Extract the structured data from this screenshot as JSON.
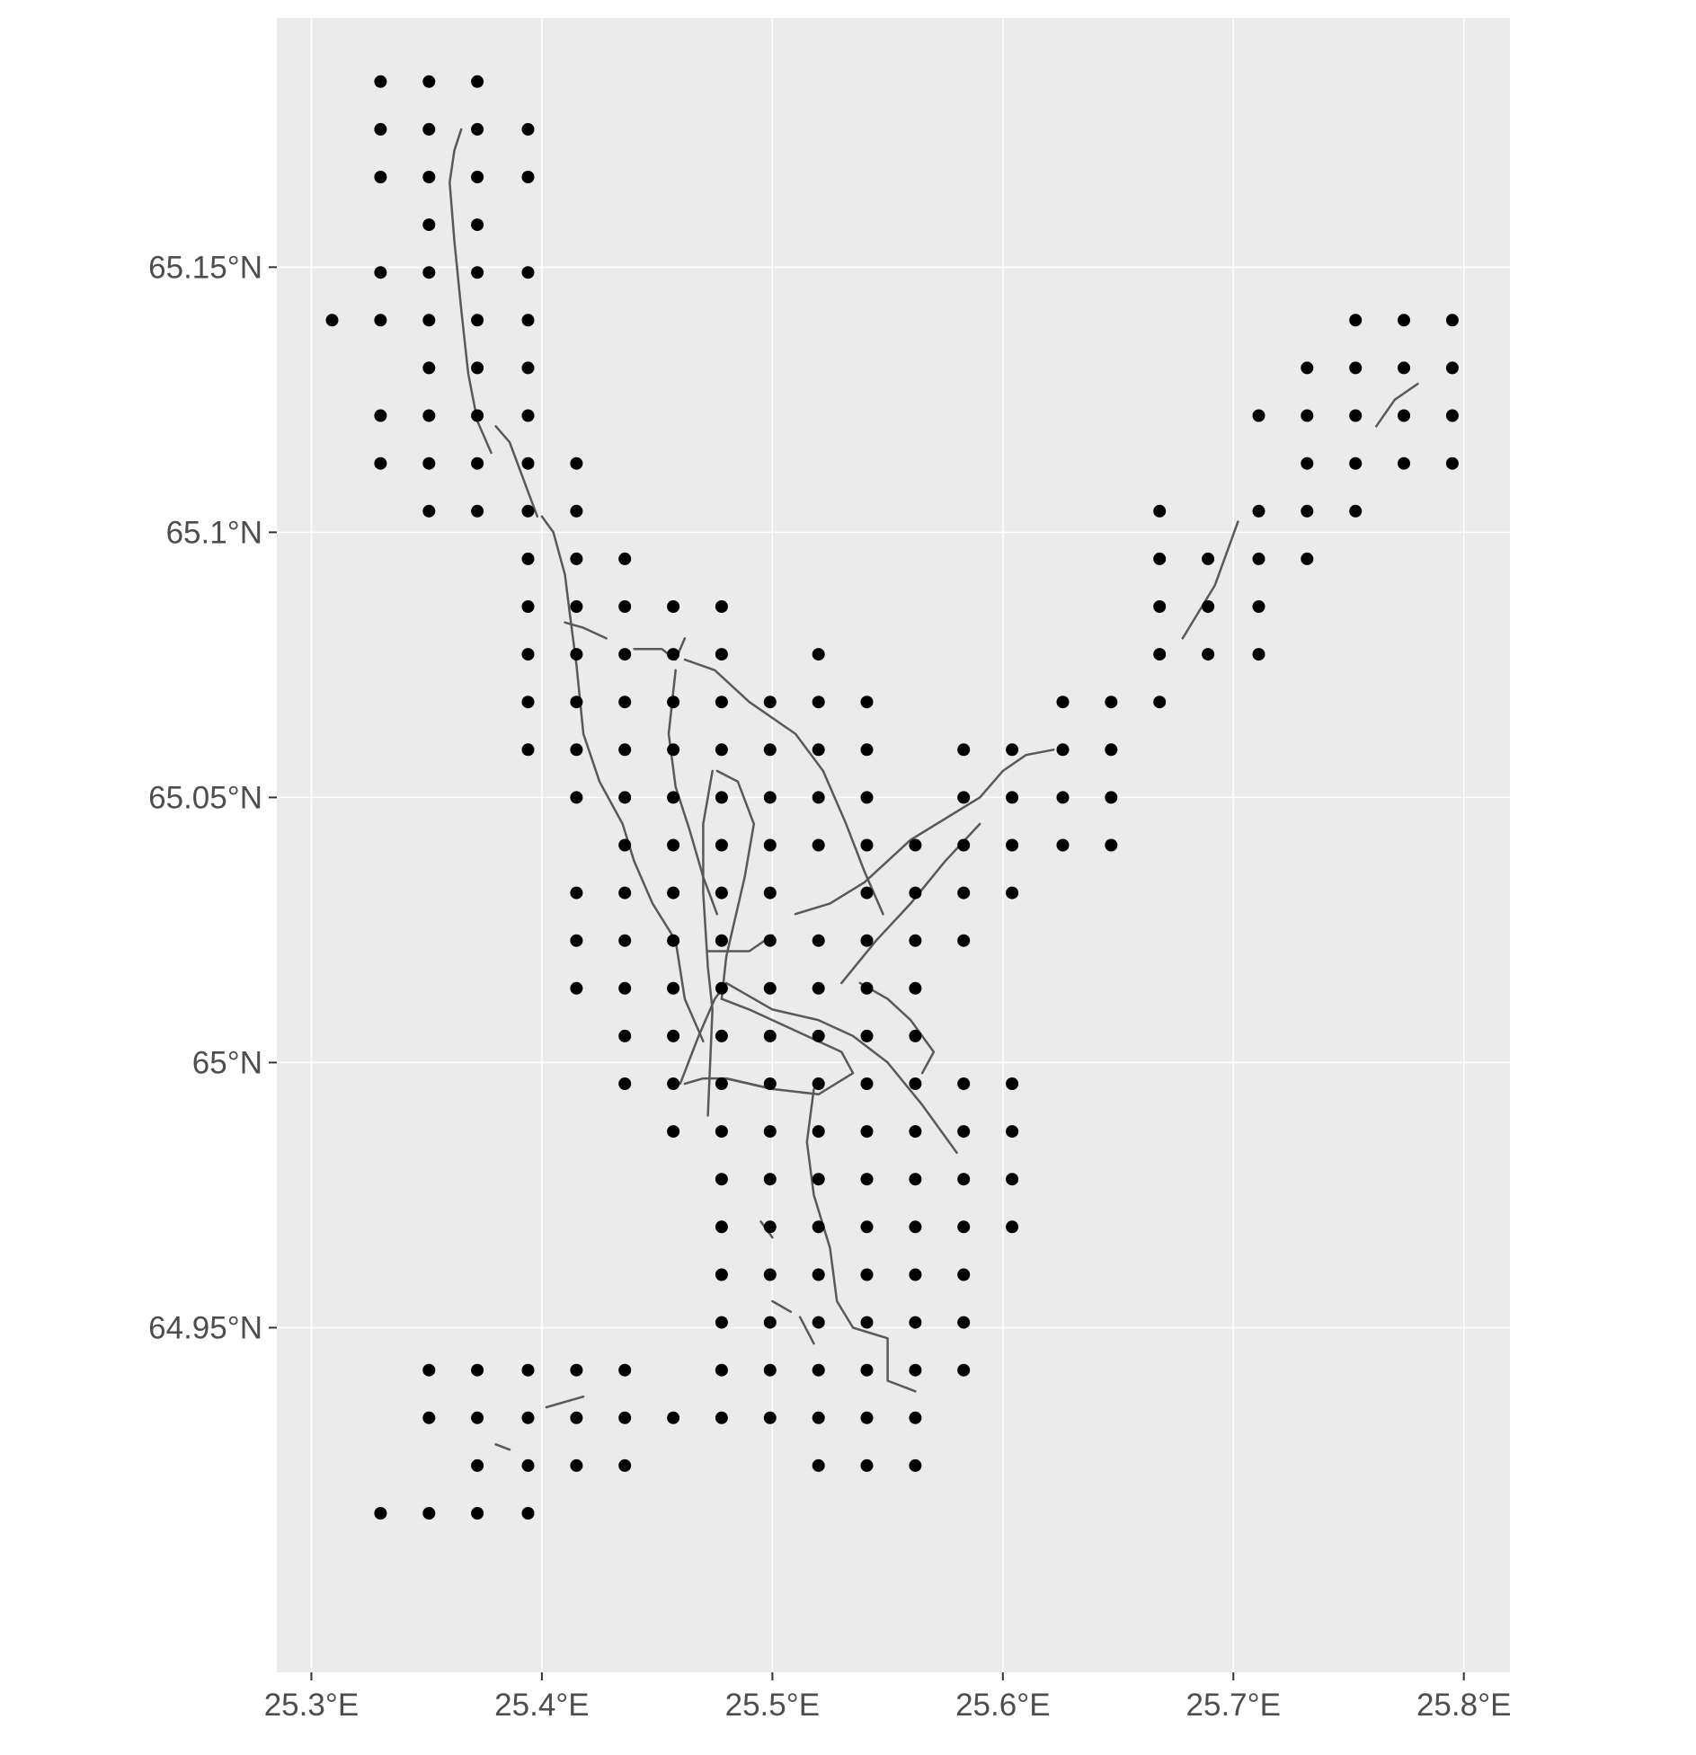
{
  "chart_data": {
    "type": "scatter",
    "title": "",
    "xlabel": "",
    "ylabel": "",
    "background_color": "#ebebeb",
    "grid_color": "#ffffff",
    "point_color": "#000000",
    "line_color": "#595959",
    "x_ticks": [
      "25.3°E",
      "25.4°E",
      "25.5°E",
      "25.6°E",
      "25.7°E",
      "25.8°E"
    ],
    "y_ticks": [
      "65.15°N",
      "65.1°N",
      "65.05°N",
      "65°N",
      "64.95°N"
    ],
    "x_tick_values": [
      25.3,
      25.4,
      25.5,
      25.6,
      25.7,
      25.8
    ],
    "y_tick_values": [
      65.15,
      65.1,
      65.05,
      65.0,
      64.95
    ],
    "xlim": [
      25.285,
      25.82
    ],
    "ylim": [
      64.885,
      65.197
    ],
    "grid": true,
    "legend": "none",
    "points_by_row": [
      {
        "lat": 65.185,
        "lons": [
          25.33,
          25.351,
          25.372
        ]
      },
      {
        "lat": 65.176,
        "lons": [
          25.33,
          25.351,
          25.372,
          25.394
        ]
      },
      {
        "lat": 65.167,
        "lons": [
          25.33,
          25.351,
          25.372,
          25.394
        ]
      },
      {
        "lat": 65.158,
        "lons": [
          25.351,
          25.372
        ]
      },
      {
        "lat": 65.149,
        "lons": [
          25.33,
          25.351,
          25.372,
          25.394
        ]
      },
      {
        "lat": 65.14,
        "lons": [
          25.309,
          25.33,
          25.351,
          25.372,
          25.394,
          25.753,
          25.774,
          25.795
        ]
      },
      {
        "lat": 65.131,
        "lons": [
          25.351,
          25.372,
          25.394,
          25.732,
          25.753,
          25.774,
          25.795
        ]
      },
      {
        "lat": 65.122,
        "lons": [
          25.33,
          25.351,
          25.372,
          25.394,
          25.711,
          25.732,
          25.753,
          25.774,
          25.795
        ]
      },
      {
        "lat": 65.113,
        "lons": [
          25.33,
          25.351,
          25.372,
          25.394,
          25.415,
          25.732,
          25.753,
          25.774,
          25.795
        ]
      },
      {
        "lat": 65.104,
        "lons": [
          25.351,
          25.372,
          25.394,
          25.415,
          25.668,
          25.711,
          25.732,
          25.753
        ]
      },
      {
        "lat": 65.095,
        "lons": [
          25.394,
          25.415,
          25.436,
          25.668,
          25.689,
          25.711,
          25.732
        ]
      },
      {
        "lat": 65.086,
        "lons": [
          25.394,
          25.415,
          25.436,
          25.457,
          25.478,
          25.668,
          25.689,
          25.711
        ]
      },
      {
        "lat": 65.077,
        "lons": [
          25.394,
          25.415,
          25.436,
          25.457,
          25.478,
          25.52,
          25.668,
          25.689,
          25.711
        ]
      },
      {
        "lat": 65.068,
        "lons": [
          25.394,
          25.415,
          25.436,
          25.457,
          25.478,
          25.499,
          25.52,
          25.541,
          25.626,
          25.647,
          25.668
        ]
      },
      {
        "lat": 65.059,
        "lons": [
          25.394,
          25.415,
          25.436,
          25.457,
          25.478,
          25.499,
          25.52,
          25.541,
          25.583,
          25.604,
          25.626,
          25.647
        ]
      },
      {
        "lat": 65.05,
        "lons": [
          25.415,
          25.436,
          25.457,
          25.478,
          25.499,
          25.52,
          25.541,
          25.583,
          25.604,
          25.626,
          25.647
        ]
      },
      {
        "lat": 65.041,
        "lons": [
          25.436,
          25.457,
          25.478,
          25.499,
          25.52,
          25.541,
          25.562,
          25.583,
          25.604,
          25.626,
          25.647
        ]
      },
      {
        "lat": 65.032,
        "lons": [
          25.415,
          25.436,
          25.457,
          25.478,
          25.499,
          25.541,
          25.562,
          25.583,
          25.604
        ]
      },
      {
        "lat": 65.023,
        "lons": [
          25.415,
          25.436,
          25.457,
          25.478,
          25.499,
          25.52,
          25.541,
          25.562,
          25.583
        ]
      },
      {
        "lat": 65.014,
        "lons": [
          25.415,
          25.436,
          25.457,
          25.478,
          25.499,
          25.52,
          25.541,
          25.562
        ]
      },
      {
        "lat": 65.005,
        "lons": [
          25.436,
          25.457,
          25.478,
          25.499,
          25.52,
          25.541,
          25.562
        ]
      },
      {
        "lat": 64.996,
        "lons": [
          25.436,
          25.457,
          25.478,
          25.499,
          25.52,
          25.541,
          25.562,
          25.583,
          25.604
        ]
      },
      {
        "lat": 64.987,
        "lons": [
          25.457,
          25.478,
          25.499,
          25.52,
          25.541,
          25.562,
          25.583,
          25.604
        ]
      },
      {
        "lat": 64.978,
        "lons": [
          25.478,
          25.499,
          25.52,
          25.541,
          25.562,
          25.583,
          25.604
        ]
      },
      {
        "lat": 64.969,
        "lons": [
          25.478,
          25.499,
          25.52,
          25.541,
          25.562,
          25.583,
          25.604
        ]
      },
      {
        "lat": 64.96,
        "lons": [
          25.478,
          25.499,
          25.52,
          25.541,
          25.562,
          25.583
        ]
      },
      {
        "lat": 64.951,
        "lons": [
          25.478,
          25.499,
          25.52,
          25.541,
          25.562,
          25.583
        ]
      },
      {
        "lat": 64.942,
        "lons": [
          25.351,
          25.372,
          25.394,
          25.415,
          25.436,
          25.478,
          25.499,
          25.52,
          25.541,
          25.562,
          25.583
        ]
      },
      {
        "lat": 64.933,
        "lons": [
          25.351,
          25.372,
          25.394,
          25.415,
          25.436,
          25.457,
          25.478,
          25.499,
          25.52,
          25.541,
          25.562
        ]
      },
      {
        "lat": 64.924,
        "lons": [
          25.372,
          25.394,
          25.415,
          25.436,
          25.52,
          25.541,
          25.562
        ]
      },
      {
        "lat": 64.915,
        "lons": [
          25.33,
          25.351,
          25.372,
          25.394
        ]
      }
    ],
    "lines": [
      [
        [
          25.365,
          65.176
        ],
        [
          25.362,
          65.172
        ],
        [
          25.36,
          65.166
        ],
        [
          25.362,
          65.155
        ],
        [
          25.365,
          65.142
        ],
        [
          25.368,
          65.13
        ],
        [
          25.372,
          65.121
        ],
        [
          25.378,
          65.115
        ]
      ],
      [
        [
          25.38,
          65.12
        ],
        [
          25.386,
          65.117
        ],
        [
          25.392,
          65.11
        ],
        [
          25.398,
          65.103
        ]
      ],
      [
        [
          25.4,
          65.103
        ],
        [
          25.405,
          65.1
        ],
        [
          25.41,
          65.092
        ],
        [
          25.412,
          65.085
        ],
        [
          25.415,
          65.075
        ],
        [
          25.418,
          65.062
        ],
        [
          25.425,
          65.053
        ],
        [
          25.435,
          65.045
        ],
        [
          25.44,
          65.038
        ],
        [
          25.448,
          65.03
        ],
        [
          25.458,
          65.023
        ],
        [
          25.462,
          65.012
        ],
        [
          25.47,
          65.004
        ]
      ],
      [
        [
          25.41,
          65.083
        ],
        [
          25.418,
          65.082
        ],
        [
          25.428,
          65.08
        ]
      ],
      [
        [
          25.44,
          65.078
        ],
        [
          25.452,
          65.078
        ],
        [
          25.458,
          65.076
        ],
        [
          25.462,
          65.08
        ]
      ],
      [
        [
          25.458,
          65.074
        ],
        [
          25.455,
          65.062
        ],
        [
          25.458,
          65.052
        ],
        [
          25.464,
          65.044
        ],
        [
          25.47,
          65.035
        ],
        [
          25.476,
          65.028
        ]
      ],
      [
        [
          25.462,
          65.076
        ],
        [
          25.475,
          65.074
        ],
        [
          25.49,
          65.068
        ],
        [
          25.51,
          65.062
        ],
        [
          25.522,
          65.055
        ],
        [
          25.532,
          65.045
        ],
        [
          25.54,
          65.036
        ],
        [
          25.548,
          65.028
        ]
      ],
      [
        [
          25.474,
          65.055
        ],
        [
          25.47,
          65.045
        ],
        [
          25.47,
          65.032
        ],
        [
          25.472,
          65.018
        ],
        [
          25.474,
          65.01
        ],
        [
          25.472,
          64.99
        ]
      ],
      [
        [
          25.476,
          65.055
        ],
        [
          25.485,
          65.053
        ],
        [
          25.492,
          65.045
        ],
        [
          25.488,
          65.035
        ],
        [
          25.48,
          65.02
        ],
        [
          25.478,
          65.012
        ]
      ],
      [
        [
          25.472,
          65.021
        ],
        [
          25.49,
          65.021
        ],
        [
          25.5,
          65.024
        ]
      ],
      [
        [
          25.51,
          65.028
        ],
        [
          25.525,
          65.03
        ],
        [
          25.54,
          65.034
        ],
        [
          25.56,
          65.042
        ],
        [
          25.575,
          65.046
        ],
        [
          25.59,
          65.05
        ],
        [
          25.6,
          65.055
        ],
        [
          25.61,
          65.058
        ],
        [
          25.622,
          65.059
        ]
      ],
      [
        [
          25.53,
          65.015
        ],
        [
          25.545,
          65.023
        ],
        [
          25.56,
          65.03
        ],
        [
          25.575,
          65.038
        ],
        [
          25.59,
          65.045
        ]
      ],
      [
        [
          25.538,
          65.015
        ],
        [
          25.55,
          65.012
        ],
        [
          25.56,
          65.008
        ],
        [
          25.57,
          65.002
        ],
        [
          25.565,
          64.998
        ]
      ],
      [
        [
          25.46,
          64.996
        ],
        [
          25.468,
          65.005
        ],
        [
          25.475,
          65.012
        ],
        [
          25.48,
          65.015
        ],
        [
          25.5,
          65.01
        ],
        [
          25.52,
          65.008
        ],
        [
          25.535,
          65.005
        ],
        [
          25.55,
          65.0
        ],
        [
          25.565,
          64.992
        ],
        [
          25.58,
          64.983
        ]
      ],
      [
        [
          25.478,
          65.012
        ],
        [
          25.49,
          65.01
        ],
        [
          25.51,
          65.006
        ],
        [
          25.53,
          65.002
        ],
        [
          25.535,
          64.998
        ],
        [
          25.52,
          64.994
        ],
        [
          25.5,
          64.995
        ],
        [
          25.48,
          64.997
        ]
      ],
      [
        [
          25.462,
          64.996
        ],
        [
          25.47,
          64.997
        ],
        [
          25.48,
          64.997
        ],
        [
          25.49,
          64.996
        ],
        [
          25.5,
          64.995
        ]
      ],
      [
        [
          25.518,
          64.995
        ],
        [
          25.515,
          64.985
        ],
        [
          25.518,
          64.975
        ],
        [
          25.525,
          64.965
        ],
        [
          25.528,
          64.955
        ],
        [
          25.535,
          64.95
        ],
        [
          25.55,
          64.948
        ],
        [
          25.55,
          64.94
        ],
        [
          25.562,
          64.938
        ]
      ],
      [
        [
          25.495,
          64.97
        ],
        [
          25.5,
          64.967
        ]
      ],
      [
        [
          25.5,
          64.955
        ],
        [
          25.508,
          64.953
        ]
      ],
      [
        [
          25.512,
          64.952
        ],
        [
          25.518,
          64.947
        ]
      ],
      [
        [
          25.402,
          64.935
        ],
        [
          25.418,
          64.937
        ]
      ],
      [
        [
          25.38,
          64.928
        ],
        [
          25.386,
          64.927
        ]
      ],
      [
        [
          25.702,
          65.102
        ],
        [
          25.692,
          65.09
        ],
        [
          25.678,
          65.08
        ]
      ],
      [
        [
          25.762,
          65.12
        ],
        [
          25.77,
          65.125
        ],
        [
          25.78,
          65.128
        ]
      ]
    ]
  }
}
